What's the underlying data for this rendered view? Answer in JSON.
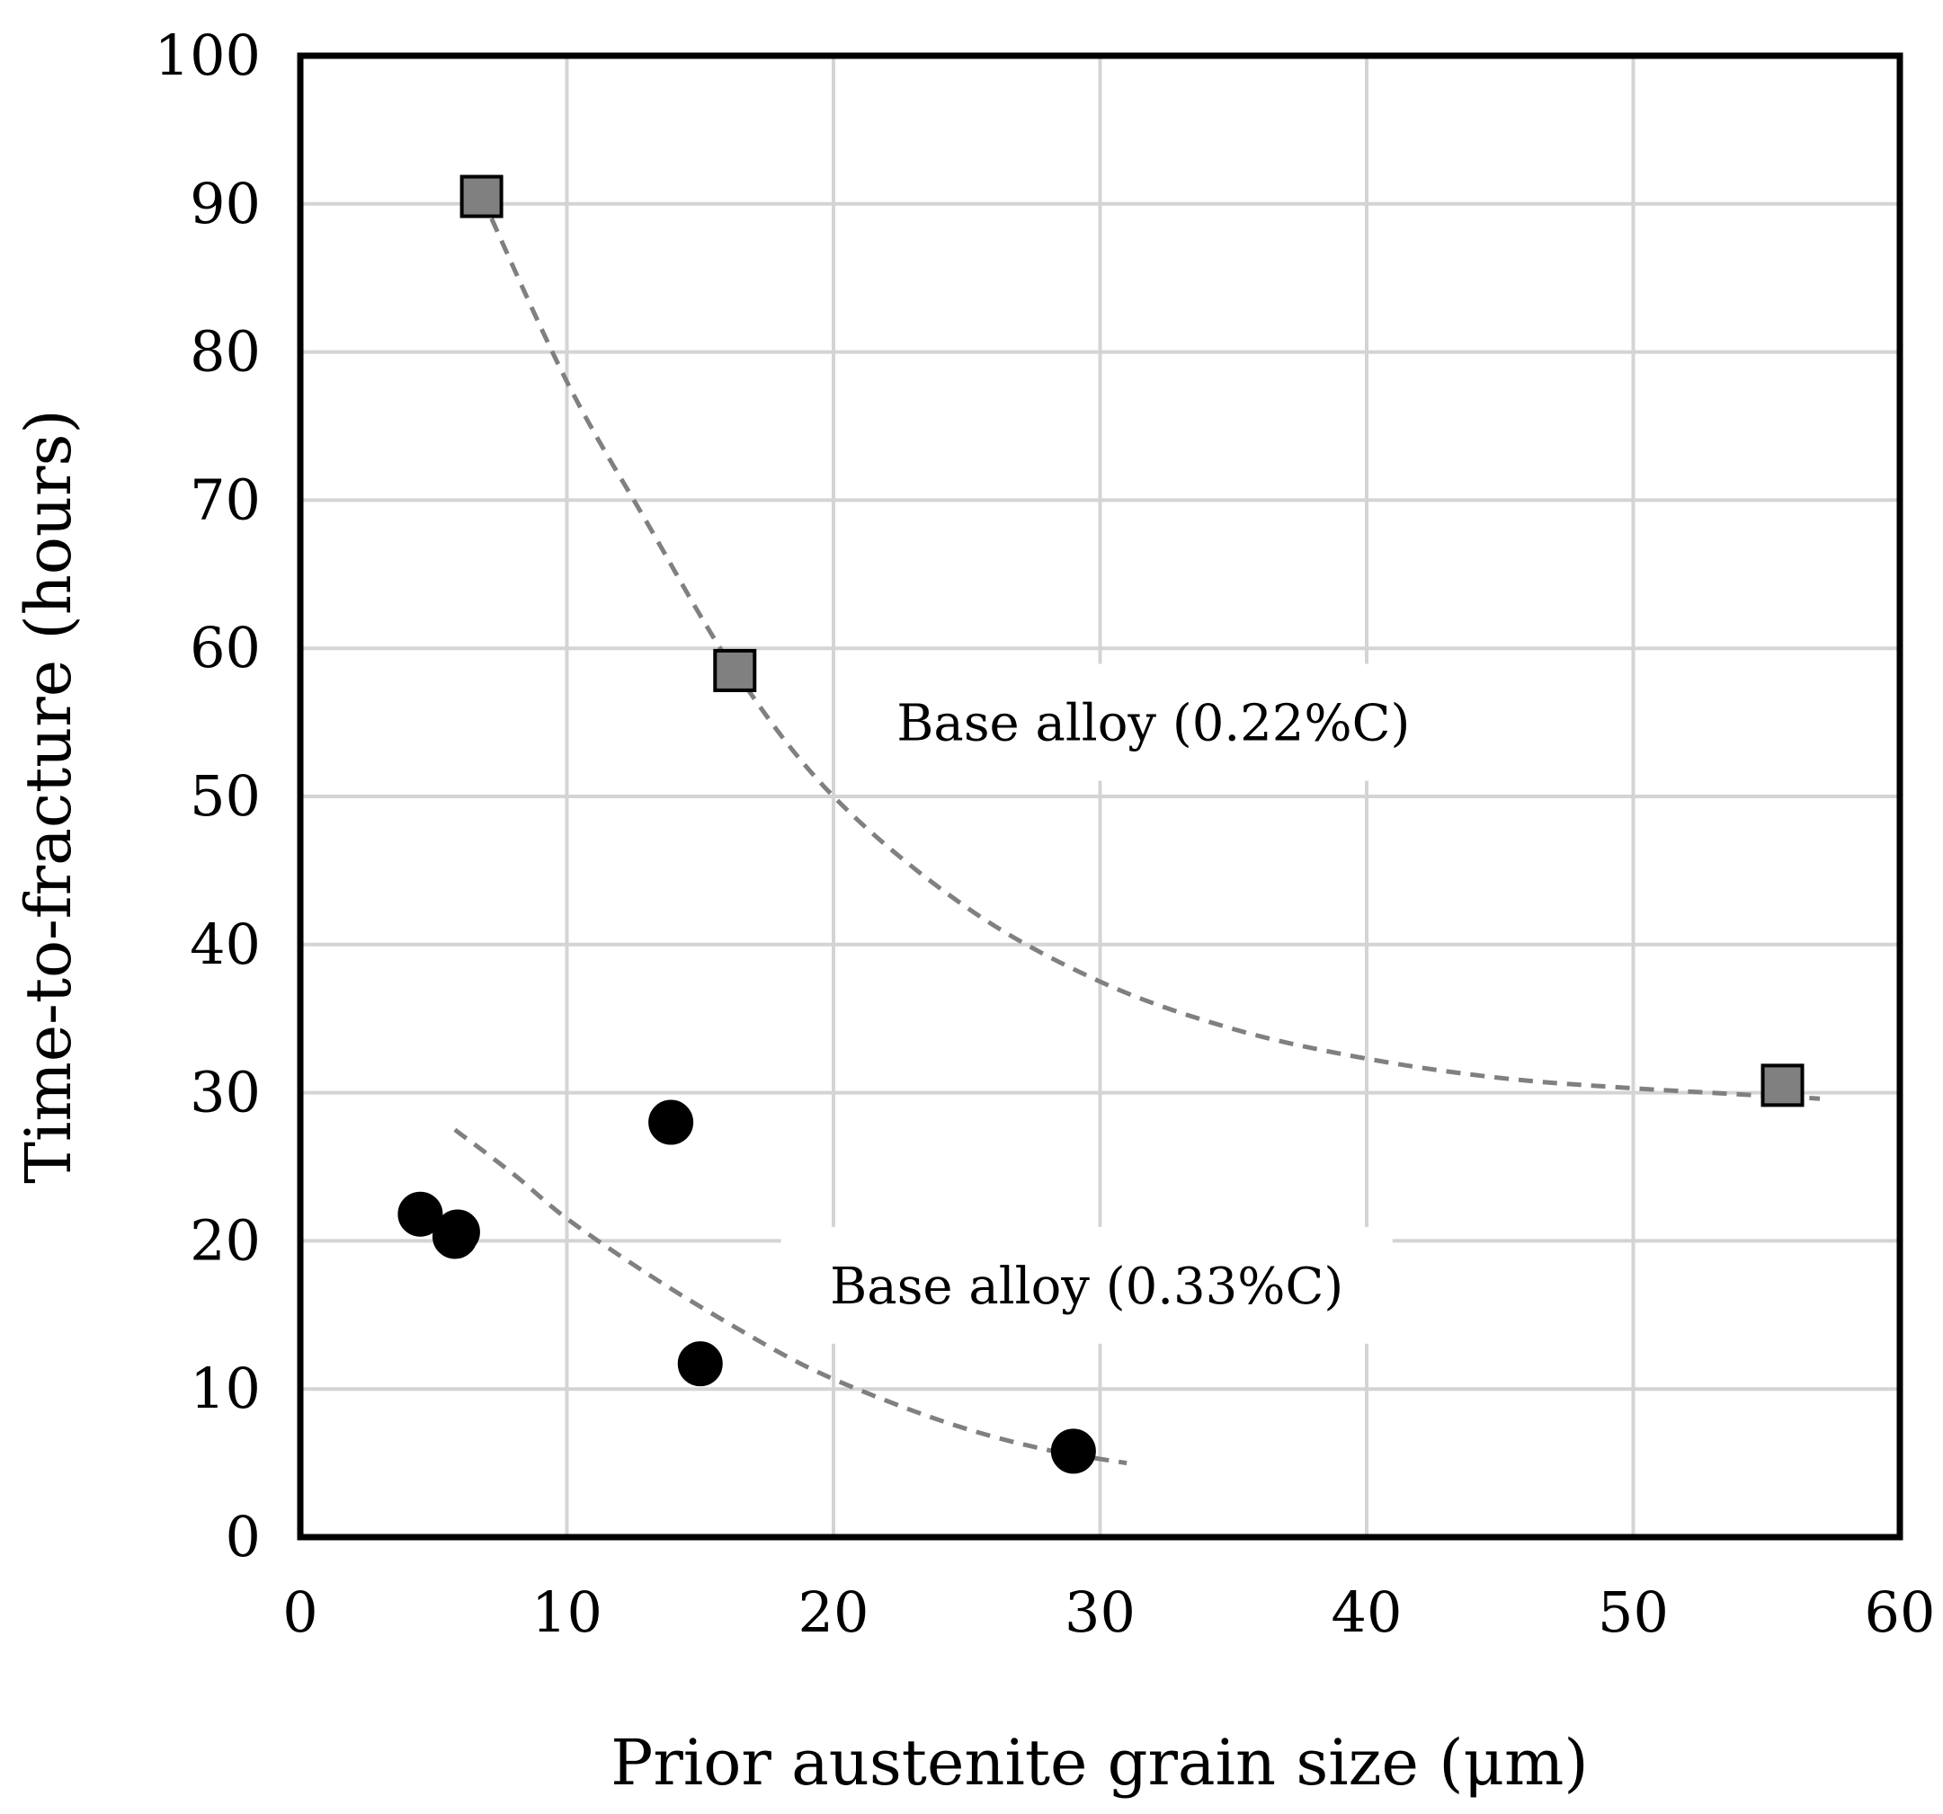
{
  "chart_data": {
    "type": "scatter",
    "title": "",
    "xlabel": "Prior austenite grain size (μm)",
    "ylabel": "Time-to-fracture (hours)",
    "xlim": [
      0,
      60
    ],
    "ylim": [
      0,
      100
    ],
    "xticks": [
      0,
      10,
      20,
      30,
      40,
      50,
      60
    ],
    "yticks": [
      0,
      10,
      20,
      30,
      40,
      50,
      60,
      70,
      80,
      90,
      100
    ],
    "xtick_labels": [
      "0",
      "10",
      "20",
      "30",
      "40",
      "50",
      "60"
    ],
    "ytick_labels": [
      "0",
      "10",
      "20",
      "30",
      "40",
      "50",
      "60",
      "70",
      "80",
      "90",
      "100"
    ],
    "grid": true,
    "series": [
      {
        "name": "Base alloy (0.22%C)",
        "marker": "square",
        "color": "#808080",
        "points": [
          [
            6.8,
            90.5
          ],
          [
            16.3,
            58.5
          ],
          [
            55.6,
            30.5
          ]
        ],
        "trendline": [
          [
            6.8,
            90.5
          ],
          [
            10,
            78.0
          ],
          [
            13,
            68.5
          ],
          [
            16.3,
            58.5
          ],
          [
            20,
            50.0
          ],
          [
            25,
            42.5
          ],
          [
            30,
            37.5
          ],
          [
            35,
            34.3
          ],
          [
            40,
            32.3
          ],
          [
            45,
            31.0
          ],
          [
            50,
            30.3
          ],
          [
            57,
            29.6
          ]
        ]
      },
      {
        "name": "Base alloy (0.33%C)",
        "marker": "circle",
        "color": "#000000",
        "points": [
          [
            4.5,
            21.8
          ],
          [
            5.8,
            20.3
          ],
          [
            5.9,
            20.6
          ],
          [
            13.9,
            28.0
          ],
          [
            15.0,
            11.7
          ],
          [
            29.0,
            5.8
          ]
        ],
        "trendline": [
          [
            5.8,
            27.5
          ],
          [
            8,
            24.5
          ],
          [
            10,
            21.5
          ],
          [
            13,
            17.8
          ],
          [
            16,
            14.5
          ],
          [
            19,
            11.5
          ],
          [
            22,
            9.2
          ],
          [
            25,
            7.3
          ],
          [
            28,
            5.9
          ],
          [
            31,
            5.0
          ]
        ]
      }
    ],
    "annotations": [
      {
        "text": "Base alloy (0.22%C)",
        "x": 32,
        "y": 55
      },
      {
        "text": "Base alloy (0.33%C)",
        "x": 29.5,
        "y": 17
      }
    ]
  }
}
